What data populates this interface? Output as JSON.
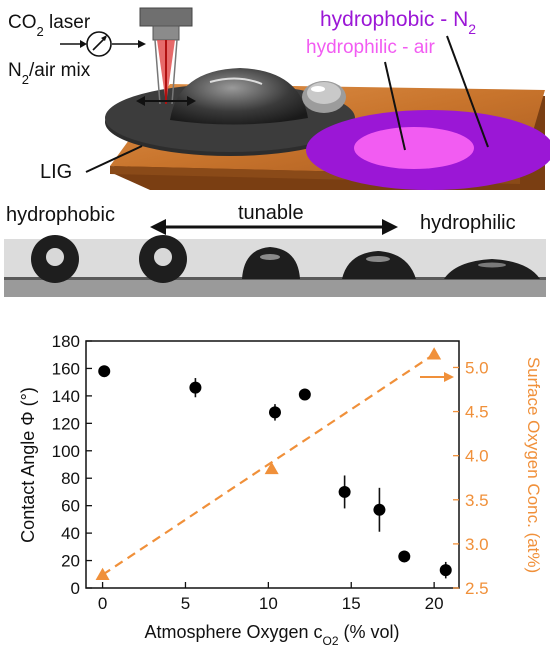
{
  "schematic": {
    "laser_label_pre": "CO",
    "laser_label_sub": "2",
    "laser_label_post": " laser",
    "gas_label_pre": "N",
    "gas_label_sub": "2",
    "gas_label_post": "/air mix",
    "lig_label": "LIG",
    "hydrophobic_label_pre": "hydrophobic - N",
    "hydrophobic_label_sub": "2",
    "hydrophilic_label": "hydrophilic - air",
    "colors": {
      "purple": "#9b17d6",
      "pink": "#f25cf2",
      "substrate": "#c8742c",
      "film": "#3a3a3a"
    }
  },
  "droplets": {
    "left_label": "hydrophobic",
    "center_label": "tunable",
    "right_label": "hydrophilic"
  },
  "chart_data": {
    "type": "scatter",
    "xlabel_pre": "Atmosphere Oxygen c",
    "xlabel_sub": "O2",
    "xlabel_post": " (% vol)",
    "ylabel": "Contact Angle Φ  (°)",
    "y2label": "Surface Oxygen Conc. (at%)",
    "xlim": [
      -1,
      21.5
    ],
    "ylim": [
      0,
      180
    ],
    "y2lim": [
      2.5,
      5.3
    ],
    "x_ticks": [
      0,
      5,
      10,
      15,
      20
    ],
    "y_ticks": [
      0,
      20,
      40,
      60,
      80,
      100,
      120,
      140,
      160,
      180
    ],
    "y2_ticks": [
      2.5,
      3.0,
      3.5,
      4.0,
      4.5,
      5.0
    ],
    "contact_angle": {
      "x": [
        0.1,
        5.6,
        10.4,
        12.2,
        14.6,
        16.7,
        18.2,
        20.7
      ],
      "y": [
        158,
        146,
        128,
        141,
        70,
        57,
        23,
        13
      ],
      "err": [
        0,
        7,
        6,
        4,
        12,
        16,
        0,
        6
      ]
    },
    "surface_oxygen": {
      "x": [
        0,
        10.2,
        20
      ],
      "y": [
        2.65,
        3.85,
        5.15
      ]
    },
    "colors": {
      "contact_angle": "#000000",
      "surface_oxygen": "#f0903a"
    }
  }
}
